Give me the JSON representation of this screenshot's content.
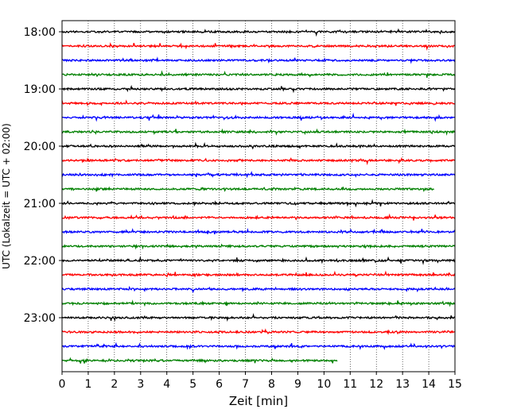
{
  "chart_data": {
    "type": "line",
    "xlabel": "Zeit  [min]",
    "ylabel": "UTC (Lokalzeit = UTC + 02:00)",
    "xlim": [
      0,
      15
    ],
    "x_ticks": [
      "0",
      "1",
      "2",
      "3",
      "4",
      "5",
      "6",
      "7",
      "8",
      "9",
      "10",
      "11",
      "12",
      "13",
      "14",
      "15"
    ],
    "y_ticks": [
      "18:00",
      "19:00",
      "20:00",
      "21:00",
      "22:00",
      "23:00"
    ],
    "trace_interval_minutes": 15,
    "start_time": "18:00",
    "vertical_grid": "dotted",
    "colors": [
      "#000000",
      "#ff0000",
      "#0000ff",
      "#008000"
    ],
    "traces": [
      {
        "start": "18:00",
        "color": "#000000",
        "end_min": 15
      },
      {
        "start": "18:15",
        "color": "#ff0000",
        "end_min": 15
      },
      {
        "start": "18:30",
        "color": "#0000ff",
        "end_min": 15
      },
      {
        "start": "18:45",
        "color": "#008000",
        "end_min": 15
      },
      {
        "start": "19:00",
        "color": "#000000",
        "end_min": 15
      },
      {
        "start": "19:15",
        "color": "#ff0000",
        "end_min": 15
      },
      {
        "start": "19:30",
        "color": "#0000ff",
        "end_min": 15
      },
      {
        "start": "19:45",
        "color": "#008000",
        "end_min": 15
      },
      {
        "start": "20:00",
        "color": "#000000",
        "end_min": 15
      },
      {
        "start": "20:15",
        "color": "#ff0000",
        "end_min": 15
      },
      {
        "start": "20:30",
        "color": "#0000ff",
        "end_min": 15
      },
      {
        "start": "20:45",
        "color": "#008000",
        "end_min": 14.2
      },
      {
        "start": "21:00",
        "color": "#000000",
        "end_min": 15
      },
      {
        "start": "21:15",
        "color": "#ff0000",
        "end_min": 15
      },
      {
        "start": "21:30",
        "color": "#0000ff",
        "end_min": 15
      },
      {
        "start": "21:45",
        "color": "#008000",
        "end_min": 15
      },
      {
        "start": "22:00",
        "color": "#000000",
        "end_min": 15
      },
      {
        "start": "22:15",
        "color": "#ff0000",
        "end_min": 15
      },
      {
        "start": "22:30",
        "color": "#0000ff",
        "end_min": 15
      },
      {
        "start": "22:45",
        "color": "#008000",
        "end_min": 15
      },
      {
        "start": "23:00",
        "color": "#000000",
        "end_min": 15
      },
      {
        "start": "23:15",
        "color": "#ff0000",
        "end_min": 15
      },
      {
        "start": "23:30",
        "color": "#0000ff",
        "end_min": 15
      },
      {
        "start": "23:45",
        "color": "#008000",
        "end_min": 10.5
      }
    ]
  }
}
